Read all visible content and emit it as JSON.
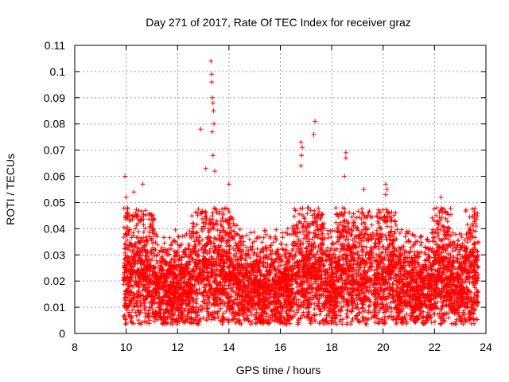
{
  "chart_data": {
    "type": "scatter",
    "title": "Day 271 of 2017, Rate Of TEC Index for receiver graz",
    "xlabel": "GPS time / hours",
    "ylabel": "ROTI / TECUs",
    "xlim": [
      8,
      24
    ],
    "ylim": [
      0,
      0.11
    ],
    "xticks": [
      8,
      10,
      12,
      14,
      16,
      18,
      20,
      22,
      24
    ],
    "yticks": [
      0,
      0.01,
      0.02,
      0.03,
      0.04,
      0.05,
      0.06,
      0.07,
      0.08,
      0.09,
      0.1,
      0.11
    ],
    "grid": true,
    "marker": "+",
    "marker_color": "#ff0000",
    "series": [
      {
        "x_range": [
          9.9,
          23.7
        ],
        "baseline_band": [
          0.005,
          0.03
        ],
        "notable_points": [
          {
            "x": 9.95,
            "y": 0.06
          },
          {
            "x": 10.0,
            "y": 0.052
          },
          {
            "x": 10.05,
            "y": 0.048
          },
          {
            "x": 10.3,
            "y": 0.054
          },
          {
            "x": 10.65,
            "y": 0.057
          },
          {
            "x": 10.75,
            "y": 0.047
          },
          {
            "x": 12.9,
            "y": 0.078
          },
          {
            "x": 13.1,
            "y": 0.063
          },
          {
            "x": 13.3,
            "y": 0.104
          },
          {
            "x": 13.33,
            "y": 0.099
          },
          {
            "x": 13.33,
            "y": 0.096
          },
          {
            "x": 13.35,
            "y": 0.09
          },
          {
            "x": 13.38,
            "y": 0.088
          },
          {
            "x": 13.4,
            "y": 0.085
          },
          {
            "x": 13.42,
            "y": 0.08
          },
          {
            "x": 13.35,
            "y": 0.077
          },
          {
            "x": 13.38,
            "y": 0.068
          },
          {
            "x": 13.45,
            "y": 0.062
          },
          {
            "x": 14.0,
            "y": 0.057
          },
          {
            "x": 16.8,
            "y": 0.073
          },
          {
            "x": 16.85,
            "y": 0.071
          },
          {
            "x": 16.82,
            "y": 0.068
          },
          {
            "x": 16.8,
            "y": 0.064
          },
          {
            "x": 17.35,
            "y": 0.081
          },
          {
            "x": 17.3,
            "y": 0.076
          },
          {
            "x": 18.55,
            "y": 0.069
          },
          {
            "x": 18.55,
            "y": 0.067
          },
          {
            "x": 18.5,
            "y": 0.06
          },
          {
            "x": 19.25,
            "y": 0.055
          },
          {
            "x": 20.1,
            "y": 0.057
          },
          {
            "x": 20.15,
            "y": 0.055
          },
          {
            "x": 20.1,
            "y": 0.053
          },
          {
            "x": 22.25,
            "y": 0.052
          },
          {
            "x": 22.3,
            "y": 0.046
          },
          {
            "x": 23.55,
            "y": 0.045
          }
        ]
      }
    ]
  }
}
